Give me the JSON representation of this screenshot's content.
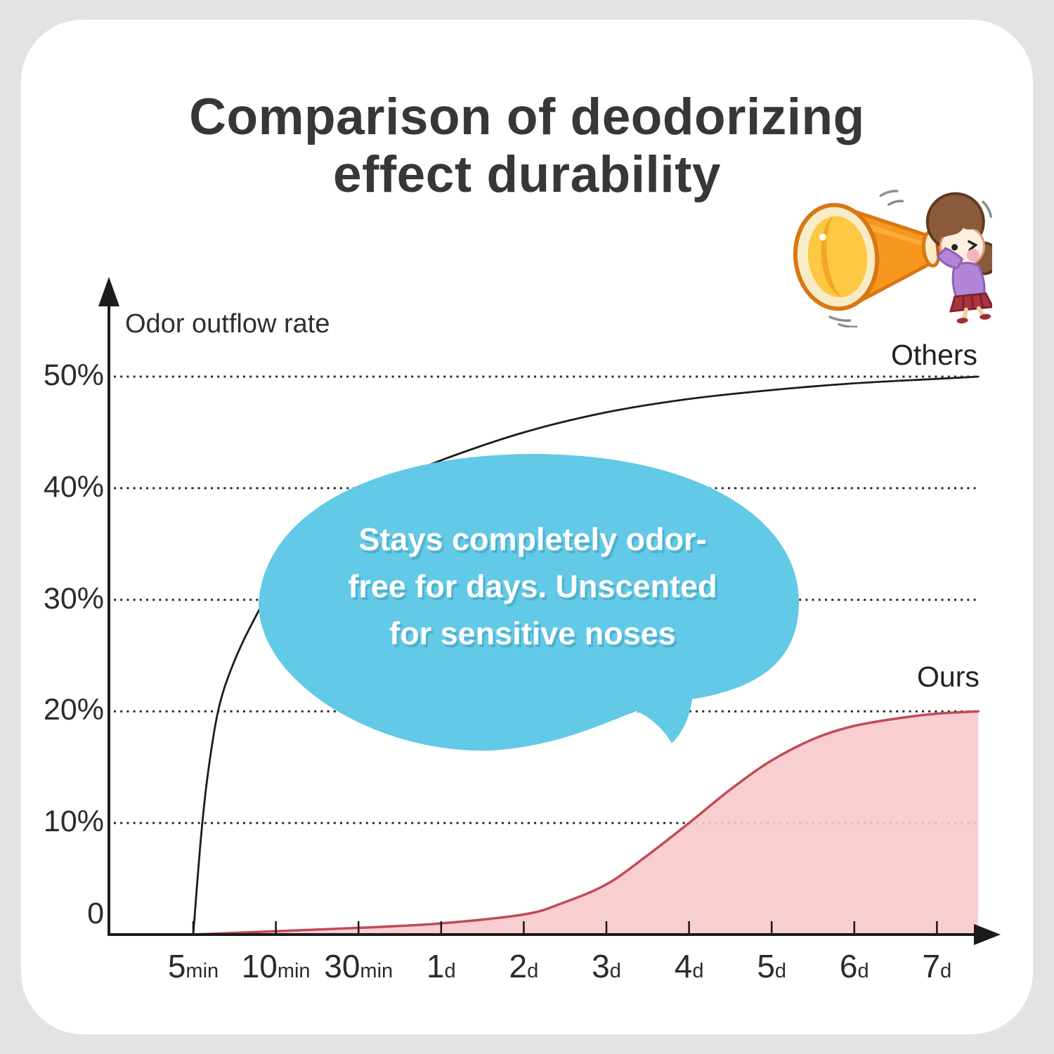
{
  "title": {
    "line1": "Comparison of deodorizing",
    "line2": "effect durability"
  },
  "chart_data": {
    "type": "line",
    "title": "Comparison of deodorizing effect durability",
    "y_axis_label": "Odor outflow rate",
    "ylabel": "Odor outflow rate",
    "xlabel": "",
    "ylim": [
      0,
      55
    ],
    "grid": "dotted horizontal lines at 10,20,30,40,50",
    "legend_position": "labels at line ends (right side)",
    "y_ticks": [
      {
        "label": "50%",
        "value": 50
      },
      {
        "label": "40%",
        "value": 40
      },
      {
        "label": "30%",
        "value": 30
      },
      {
        "label": "20%",
        "value": 20
      },
      {
        "label": "10%",
        "value": 10
      },
      {
        "label": "0",
        "value": 0
      }
    ],
    "x_categories": [
      {
        "value": "5",
        "unit": "min"
      },
      {
        "value": "10",
        "unit": "min"
      },
      {
        "value": "30",
        "unit": "min"
      },
      {
        "value": "1",
        "unit": "d"
      },
      {
        "value": "2",
        "unit": "d"
      },
      {
        "value": "3",
        "unit": "d"
      },
      {
        "value": "4",
        "unit": "d"
      },
      {
        "value": "5",
        "unit": "d"
      },
      {
        "value": "6",
        "unit": "d"
      },
      {
        "value": "7",
        "unit": "d"
      }
    ],
    "series": [
      {
        "name": "Others",
        "style": "line",
        "color": "#1c1c1c",
        "comment": "t is x position in tick units: 0=5min,1=10min,2=30min,3=1d,4=2d,5=3d,6=4d,7=5d,8=6d,9=7d; v is odor outflow %",
        "points": [
          {
            "t": 0,
            "v": 0
          },
          {
            "t": 0.085,
            "v": 8
          },
          {
            "t": 0.17,
            "v": 14
          },
          {
            "t": 0.3,
            "v": 20
          },
          {
            "t": 0.47,
            "v": 24
          },
          {
            "t": 0.72,
            "v": 28
          },
          {
            "t": 1,
            "v": 31.5
          },
          {
            "t": 1.49,
            "v": 35.5
          },
          {
            "t": 2,
            "v": 38.5
          },
          {
            "t": 2.51,
            "v": 40.8
          },
          {
            "t": 3,
            "v": 42.5
          },
          {
            "t": 4,
            "v": 45
          },
          {
            "t": 5,
            "v": 46.8
          },
          {
            "t": 6,
            "v": 48
          },
          {
            "t": 7,
            "v": 48.8
          },
          {
            "t": 8,
            "v": 49.4
          },
          {
            "t": 9,
            "v": 49.8
          },
          {
            "t": 9.5,
            "v": 50
          }
        ]
      },
      {
        "name": "Ours",
        "style": "area",
        "color": "#c04b58",
        "fill": "#f8c9cc",
        "points": [
          {
            "t": 0,
            "v": 0
          },
          {
            "t": 1,
            "v": 0.3
          },
          {
            "t": 2,
            "v": 0.6
          },
          {
            "t": 3,
            "v": 1.0
          },
          {
            "t": 4,
            "v": 1.8
          },
          {
            "t": 4.46,
            "v": 2.8
          },
          {
            "t": 5,
            "v": 4.5
          },
          {
            "t": 5.48,
            "v": 7
          },
          {
            "t": 6,
            "v": 10
          },
          {
            "t": 6.5,
            "v": 13
          },
          {
            "t": 7,
            "v": 15.6
          },
          {
            "t": 7.53,
            "v": 17.6
          },
          {
            "t": 8,
            "v": 18.7
          },
          {
            "t": 8.55,
            "v": 19.4
          },
          {
            "t": 9,
            "v": 19.8
          },
          {
            "t": 9.5,
            "v": 20
          }
        ]
      }
    ],
    "annotation": {
      "lines": [
        "Stays completely odor-",
        "free for days. Unscented",
        "for sensitive noses"
      ],
      "bubble_color": "#62c9e6",
      "text_color": "#ffffff"
    }
  },
  "labels": {
    "others": "Others",
    "ours": "Ours"
  },
  "illustration": {
    "name": "girl-shouting-into-megaphone",
    "megaphone_color": "#f6961e",
    "megaphone_inner": "#fdc843"
  },
  "colors": {
    "card_bg": "#ffffff",
    "page_bg": "#e3e3e3",
    "text": "#2f2f2f",
    "grid": "#2a2a2a"
  }
}
